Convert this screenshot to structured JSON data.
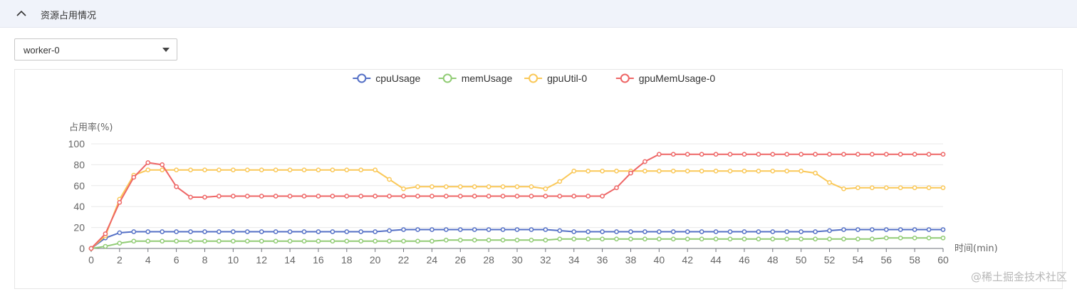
{
  "header": {
    "title": "资源占用情况",
    "collapse_icon": "chevron-up-icon"
  },
  "node_select": {
    "value": "worker-0",
    "caret_icon": "caret-down-icon"
  },
  "watermark": "@稀土掘金技术社区",
  "chart_data": {
    "type": "line",
    "ylabel": "占用率(%)",
    "xlabel": "时间(min)",
    "ylim": [
      0,
      100
    ],
    "yticks": [
      0,
      20,
      40,
      60,
      80,
      100
    ],
    "xlim": [
      0,
      60
    ],
    "xticks": [
      0,
      2,
      4,
      6,
      8,
      10,
      12,
      14,
      16,
      18,
      20,
      22,
      24,
      26,
      28,
      30,
      32,
      34,
      36,
      38,
      40,
      42,
      44,
      46,
      48,
      50,
      52,
      54,
      56,
      58,
      60
    ],
    "x": [
      0,
      1,
      2,
      3,
      4,
      5,
      6,
      7,
      8,
      9,
      10,
      11,
      12,
      13,
      14,
      15,
      16,
      17,
      18,
      19,
      20,
      21,
      22,
      23,
      24,
      25,
      26,
      27,
      28,
      29,
      30,
      31,
      32,
      33,
      34,
      35,
      36,
      37,
      38,
      39,
      40,
      41,
      42,
      43,
      44,
      45,
      46,
      47,
      48,
      49,
      50,
      51,
      52,
      53,
      54,
      55,
      56,
      57,
      58,
      59,
      60
    ],
    "grid": true,
    "legend_position": "top-center",
    "series": [
      {
        "name": "cpuUsage",
        "color": "#5470c6",
        "values": [
          0,
          10,
          15,
          16,
          16,
          16,
          16,
          16,
          16,
          16,
          16,
          16,
          16,
          16,
          16,
          16,
          16,
          16,
          16,
          16,
          16,
          17,
          18,
          18,
          18,
          18,
          18,
          18,
          18,
          18,
          18,
          18,
          18,
          17,
          16,
          16,
          16,
          16,
          16,
          16,
          16,
          16,
          16,
          16,
          16,
          16,
          16,
          16,
          16,
          16,
          16,
          16,
          17,
          18,
          18,
          18,
          18,
          18,
          18,
          18,
          18
        ]
      },
      {
        "name": "memUsage",
        "color": "#91cc75",
        "values": [
          0,
          2,
          5,
          7,
          7,
          7,
          7,
          7,
          7,
          7,
          7,
          7,
          7,
          7,
          7,
          7,
          7,
          7,
          7,
          7,
          7,
          7,
          7,
          7,
          7,
          8,
          8,
          8,
          8,
          8,
          8,
          8,
          8,
          9,
          9,
          9,
          9,
          9,
          9,
          9,
          9,
          9,
          9,
          9,
          9,
          9,
          9,
          9,
          9,
          9,
          9,
          9,
          9,
          9,
          9,
          9,
          10,
          10,
          10,
          10,
          10
        ]
      },
      {
        "name": "gpuUtil-0",
        "color": "#fac858",
        "values": [
          0,
          12,
          47,
          70,
          75,
          75,
          75,
          75,
          75,
          75,
          75,
          75,
          75,
          75,
          75,
          75,
          75,
          75,
          75,
          75,
          75,
          66,
          57,
          59,
          59,
          59,
          59,
          59,
          59,
          59,
          59,
          59,
          57,
          64,
          74,
          74,
          74,
          74,
          74,
          74,
          74,
          74,
          74,
          74,
          74,
          74,
          74,
          74,
          74,
          74,
          74,
          72,
          63,
          57,
          58,
          58,
          58,
          58,
          58,
          58,
          58
        ]
      },
      {
        "name": "gpuMemUsage-0",
        "color": "#ee6666",
        "values": [
          0,
          14,
          44,
          68,
          82,
          80,
          59,
          49,
          49,
          50,
          50,
          50,
          50,
          50,
          50,
          50,
          50,
          50,
          50,
          50,
          50,
          50,
          50,
          50,
          50,
          50,
          50,
          50,
          50,
          50,
          50,
          50,
          50,
          50,
          50,
          50,
          50,
          58,
          72,
          83,
          90,
          90,
          90,
          90,
          90,
          90,
          90,
          90,
          90,
          90,
          90,
          90,
          90,
          90,
          90,
          90,
          90,
          90,
          90,
          90,
          90
        ]
      }
    ]
  }
}
